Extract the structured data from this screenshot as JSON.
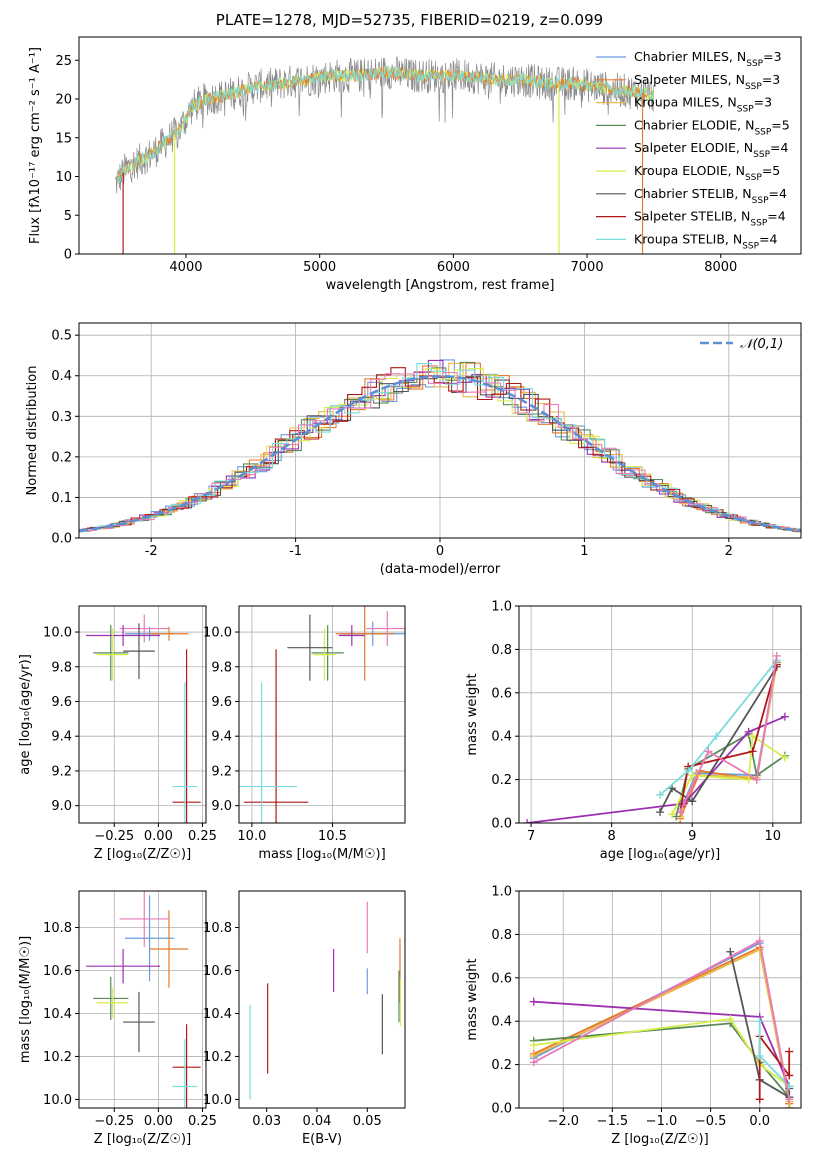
{
  "figure": {
    "title": "PLATE=1278, MJD=52735, FIBERID=0219, z=0.099"
  },
  "colors": {
    "Chabrier MILES": "#6a9bdf",
    "Salpeter MILES": "#e87a2a",
    "Kroupa MILES": "#e9b84a",
    "Chabrier ELODIE": "#5a8a5a",
    "Salpeter ELODIE": "#9b30b0",
    "Kroupa ELODIE": "#d6ee4a",
    "Chabrier STELIB": "#555555",
    "Salpeter STELIB": "#b01818",
    "Kroupa STELIB": "#7adcdc",
    "extra pink": "#e87ab8",
    "gauss": "#5b8fd6"
  },
  "chart_data": [
    {
      "id": "spectrum",
      "type": "line",
      "xlabel": "wavelength [Angstrom, rest frame]",
      "ylabel": "Flux [fλ10⁻¹⁷ erg cm⁻² s⁻¹ A⁻¹]",
      "xlim": [
        3200,
        8600
      ],
      "ylim": [
        0,
        28
      ],
      "xticks": [
        4000,
        5000,
        6000,
        7000,
        8000
      ],
      "yticks": [
        0,
        5,
        10,
        15,
        20,
        25
      ],
      "grid": false,
      "legend_position": "top-right",
      "spectrum_shape": {
        "x": [
          3470,
          3550,
          3650,
          3750,
          3850,
          3950,
          4050,
          4150,
          4300,
          4500,
          4700,
          4900,
          5100,
          5300,
          5500,
          5700,
          5900,
          6100,
          6300,
          6500,
          6700,
          6900,
          7100,
          7300,
          7500
        ],
        "y": [
          9,
          11,
          12,
          13,
          14.5,
          16,
          19,
          20,
          20.5,
          21.5,
          22,
          22.5,
          23,
          23,
          23.5,
          23,
          23,
          23,
          22.5,
          22.5,
          22,
          22,
          21.5,
          21,
          20.5
        ]
      },
      "models": [
        {
          "name": "Chabrier MILES",
          "nssp": "3"
        },
        {
          "name": "Salpeter MILES",
          "nssp": "3"
        },
        {
          "name": "Kroupa MILES",
          "nssp": "3"
        },
        {
          "name": "Chabrier ELODIE",
          "nssp": "5"
        },
        {
          "name": "Salpeter ELODIE",
          "nssp": "4"
        },
        {
          "name": "Kroupa ELODIE",
          "nssp": "5"
        },
        {
          "name": "Chabrier STELIB",
          "nssp": "4"
        },
        {
          "name": "Salpeter STELIB",
          "nssp": "4"
        },
        {
          "name": "Kroupa STELIB",
          "nssp": "4"
        }
      ]
    },
    {
      "id": "residuals",
      "type": "line",
      "xlabel": "(data-model)/error",
      "ylabel": "Normed distribution",
      "xlim": [
        -2.5,
        2.5
      ],
      "ylim": [
        0,
        0.53
      ],
      "xticks": [
        -2,
        -1,
        0,
        1,
        2
      ],
      "yticks": [
        0.0,
        0.1,
        0.2,
        0.3,
        0.4,
        0.5
      ],
      "grid": true,
      "legend": "𝒩(0,1)",
      "legend_position": "top-right",
      "bin_width": 0.1
    },
    {
      "id": "age-vs-z",
      "type": "scatter",
      "xlabel": "Z [log₁₀(Z/Z☉)]",
      "ylabel": "age [log₁₀(age/yr)]",
      "xlim": [
        -0.45,
        0.27
      ],
      "ylim": [
        8.9,
        10.15
      ],
      "xticks": [
        -0.25,
        0.0,
        0.25
      ],
      "xtick_labels": [
        "−0.25",
        "0.00",
        "0.25"
      ],
      "yticks": [
        9.0,
        9.2,
        9.4,
        9.6,
        9.8,
        10.0
      ],
      "grid": true,
      "points": [
        {
          "series": "Chabrier MILES",
          "x": -0.05,
          "xerr": 0.14,
          "y": 9.99,
          "yerr": 0.04
        },
        {
          "series": "Salpeter MILES",
          "x": 0.06,
          "xerr": 0.11,
          "y": 9.99,
          "yerr": 0.04
        },
        {
          "series": "extra pink",
          "x": -0.08,
          "xerr": 0.14,
          "y": 10.02,
          "yerr": 0.08
        },
        {
          "series": "Chabrier ELODIE",
          "x": -0.27,
          "xerr": 0.1,
          "y": 9.88,
          "yerr": 0.16
        },
        {
          "series": "Salpeter ELODIE",
          "x": -0.2,
          "xerr": 0.21,
          "y": 9.98,
          "yerr": 0.06
        },
        {
          "series": "Kroupa ELODIE",
          "x": -0.26,
          "xerr": 0.09,
          "y": 9.87,
          "yerr": 0.15
        },
        {
          "series": "Chabrier STELIB",
          "x": -0.11,
          "xerr": 0.09,
          "y": 9.89,
          "yerr": 0.16
        },
        {
          "series": "Salpeter STELIB",
          "x": 0.16,
          "xerr": 0.08,
          "y": 9.02,
          "yerr": 0.88
        },
        {
          "series": "Kroupa STELIB",
          "x": 0.15,
          "xerr": 0.07,
          "y": 9.11,
          "yerr": 0.6
        }
      ]
    },
    {
      "id": "age-vs-mass",
      "type": "scatter",
      "xlabel": "mass [log₁₀(M/M☉)]",
      "xlim": [
        9.92,
        10.95
      ],
      "ylim": [
        8.9,
        10.15
      ],
      "xticks": [
        10.0,
        10.5
      ],
      "yticks": [
        9.0,
        9.2,
        9.4,
        9.6,
        9.8,
        10.0
      ],
      "grid": true,
      "points": [
        {
          "series": "Chabrier MILES",
          "x": 10.75,
          "xerr": 0.2,
          "y": 9.99,
          "yerr": 0.07
        },
        {
          "series": "Salpeter MILES",
          "x": 10.7,
          "xerr": 0.18,
          "y": 9.99,
          "yerr": 0.27
        },
        {
          "series": "extra pink",
          "x": 10.84,
          "xerr": 0.13,
          "y": 10.02,
          "yerr": 0.1
        },
        {
          "series": "Chabrier ELODIE",
          "x": 10.47,
          "xerr": 0.1,
          "y": 9.88,
          "yerr": 0.16
        },
        {
          "series": "Salpeter ELODIE",
          "x": 10.62,
          "xerr": 0.08,
          "y": 9.98,
          "yerr": 0.06
        },
        {
          "series": "Kroupa ELODIE",
          "x": 10.45,
          "xerr": 0.07,
          "y": 9.87,
          "yerr": 0.15
        },
        {
          "series": "Chabrier STELIB",
          "x": 10.36,
          "xerr": 0.14,
          "y": 9.91,
          "yerr": 0.19
        },
        {
          "series": "Salpeter STELIB",
          "x": 10.15,
          "xerr": 0.2,
          "y": 9.02,
          "yerr": 0.88
        },
        {
          "series": "Kroupa STELIB",
          "x": 10.06,
          "xerr": 0.22,
          "y": 9.11,
          "yerr": 0.6
        }
      ]
    },
    {
      "id": "weight-vs-age",
      "type": "line",
      "xlabel": "age [log₁₀(age/yr)]",
      "ylabel": "mass weight",
      "xlim": [
        6.85,
        10.35
      ],
      "ylim": [
        0,
        1.0
      ],
      "xticks": [
        7,
        8,
        9,
        10
      ],
      "yticks": [
        0.0,
        0.2,
        0.4,
        0.6,
        0.8,
        1.0
      ],
      "grid": true,
      "series": [
        {
          "name": "Chabrier MILES",
          "x": [
            8.85,
            9.05,
            9.8,
            10.05
          ],
          "y": [
            0.05,
            0.23,
            0.22,
            0.74
          ]
        },
        {
          "name": "Salpeter MILES",
          "x": [
            8.85,
            9.1,
            9.8,
            10.05
          ],
          "y": [
            0.02,
            0.24,
            0.2,
            0.74
          ]
        },
        {
          "name": "Kroupa MILES",
          "x": [
            8.85,
            9.05,
            9.8,
            10.05
          ],
          "y": [
            0.03,
            0.22,
            0.21,
            0.73
          ]
        },
        {
          "name": "Chabrier ELODIE",
          "x": [
            8.8,
            8.95,
            9.7,
            9.8,
            10.15
          ],
          "y": [
            0.03,
            0.25,
            0.41,
            0.22,
            0.31
          ]
        },
        {
          "name": "Salpeter ELODIE",
          "x": [
            6.95,
            8.9,
            9.7,
            10.15
          ],
          "y": [
            0.0,
            0.09,
            0.42,
            0.49
          ]
        },
        {
          "name": "Kroupa ELODIE",
          "x": [
            8.75,
            9.0,
            9.7,
            9.75,
            10.15
          ],
          "y": [
            0.04,
            0.22,
            0.2,
            0.4,
            0.3
          ]
        },
        {
          "name": "Chabrier STELIB",
          "x": [
            8.6,
            8.75,
            9.0,
            10.05
          ],
          "y": [
            0.05,
            0.16,
            0.1,
            0.72
          ]
        },
        {
          "name": "Salpeter STELIB",
          "x": [
            8.85,
            8.95,
            9.75,
            10.05
          ],
          "y": [
            0.05,
            0.26,
            0.33,
            0.73
          ]
        },
        {
          "name": "Kroupa STELIB",
          "x": [
            8.6,
            8.95,
            9.3,
            10.05
          ],
          "y": [
            0.13,
            0.24,
            0.4,
            0.75
          ]
        },
        {
          "name": "extra pink",
          "x": [
            8.85,
            9.2,
            9.8,
            10.05
          ],
          "y": [
            0.05,
            0.33,
            0.2,
            0.77
          ]
        }
      ]
    },
    {
      "id": "mass-vs-z",
      "type": "scatter",
      "xlabel": "Z [log₁₀(Z/Z☉)]",
      "ylabel": "mass [log₁₀(M/M☉)]",
      "xlim": [
        -0.45,
        0.27
      ],
      "ylim": [
        9.96,
        10.97
      ],
      "xticks": [
        -0.25,
        0.0,
        0.25
      ],
      "xtick_labels": [
        "−0.25",
        "0.00",
        "0.25"
      ],
      "yticks": [
        10.0,
        10.2,
        10.4,
        10.6,
        10.8
      ],
      "grid": true,
      "points": [
        {
          "series": "Chabrier MILES",
          "x": -0.05,
          "xerr": 0.14,
          "y": 10.75,
          "yerr": 0.2
        },
        {
          "series": "Salpeter MILES",
          "x": 0.06,
          "xerr": 0.11,
          "y": 10.7,
          "yerr": 0.18
        },
        {
          "series": "extra pink",
          "x": -0.08,
          "xerr": 0.14,
          "y": 10.84,
          "yerr": 0.13
        },
        {
          "series": "Chabrier ELODIE",
          "x": -0.27,
          "xerr": 0.1,
          "y": 10.47,
          "yerr": 0.1
        },
        {
          "series": "Salpeter ELODIE",
          "x": -0.2,
          "xerr": 0.21,
          "y": 10.62,
          "yerr": 0.08
        },
        {
          "series": "Kroupa ELODIE",
          "x": -0.26,
          "xerr": 0.09,
          "y": 10.45,
          "yerr": 0.07
        },
        {
          "series": "Chabrier STELIB",
          "x": -0.11,
          "xerr": 0.09,
          "y": 10.36,
          "yerr": 0.14
        },
        {
          "series": "Salpeter STELIB",
          "x": 0.16,
          "xerr": 0.08,
          "y": 10.15,
          "yerr": 0.2
        },
        {
          "series": "Kroupa STELIB",
          "x": 0.15,
          "xerr": 0.07,
          "y": 10.06,
          "yerr": 0.22
        }
      ]
    },
    {
      "id": "mass-vs-ebv",
      "type": "scatter",
      "xlabel": "E(B-V)",
      "xlim": [
        0.0245,
        0.0575
      ],
      "ylim": [
        9.96,
        10.97
      ],
      "xticks": [
        0.03,
        0.04,
        0.05
      ],
      "yticks": [
        10.0,
        10.2,
        10.4,
        10.6,
        10.8
      ],
      "grid": false,
      "points": [
        {
          "series": "Chabrier MILES",
          "x": 0.05,
          "y": 10.55,
          "yerr": 0.06
        },
        {
          "series": "Salpeter MILES",
          "x": 0.0565,
          "y": 10.6,
          "yerr": 0.15
        },
        {
          "series": "extra pink",
          "x": 0.05,
          "y": 10.8,
          "yerr": 0.12
        },
        {
          "series": "Chabrier ELODIE",
          "x": 0.0563,
          "y": 10.48,
          "yerr": 0.12
        },
        {
          "series": "Salpeter ELODIE",
          "x": 0.0433,
          "y": 10.6,
          "yerr": 0.1
        },
        {
          "series": "Kroupa ELODIE",
          "x": 0.0566,
          "y": 10.45,
          "yerr": 0.11
        },
        {
          "series": "Chabrier STELIB",
          "x": 0.053,
          "y": 10.35,
          "yerr": 0.14
        },
        {
          "series": "Salpeter STELIB",
          "x": 0.0302,
          "y": 10.33,
          "yerr": 0.21
        },
        {
          "series": "Kroupa STELIB",
          "x": 0.0267,
          "y": 10.22,
          "yerr": 0.22
        }
      ]
    },
    {
      "id": "weight-vs-z",
      "type": "line",
      "xlabel": "Z [log₁₀(Z/Z☉)]",
      "ylabel": "mass weight",
      "xlim": [
        -2.45,
        0.42
      ],
      "ylim": [
        0,
        1.0
      ],
      "xticks": [
        -2.0,
        -1.5,
        -1.0,
        -0.5,
        0.0
      ],
      "xtick_labels": [
        "−2.0",
        "−1.5",
        "−1.0",
        "−0.5",
        "0.0"
      ],
      "yticks": [
        0.0,
        0.2,
        0.4,
        0.6,
        0.8,
        1.0
      ],
      "grid": true,
      "series": [
        {
          "name": "Chabrier MILES",
          "x": [
            -2.3,
            0.0,
            0.3,
            0.3
          ],
          "y": [
            0.23,
            0.76,
            0.02,
            0.0
          ]
        },
        {
          "name": "Salpeter MILES",
          "x": [
            -2.3,
            0.0,
            0.3,
            0.3
          ],
          "y": [
            0.25,
            0.74,
            0.02,
            0.0
          ]
        },
        {
          "name": "Kroupa MILES",
          "x": [
            -2.3,
            0.0,
            0.3,
            0.3
          ],
          "y": [
            0.24,
            0.73,
            0.03,
            0.0
          ]
        },
        {
          "name": "Chabrier ELODIE",
          "x": [
            -2.3,
            -0.3,
            0.0,
            0.3
          ],
          "y": [
            0.31,
            0.39,
            0.21,
            0.05
          ]
        },
        {
          "name": "Salpeter ELODIE",
          "x": [
            -2.3,
            0.0,
            0.3
          ],
          "y": [
            0.49,
            0.42,
            0.1
          ]
        },
        {
          "name": "Kroupa ELODIE",
          "x": [
            -2.3,
            -0.3,
            0.0,
            0.3
          ],
          "y": [
            0.29,
            0.41,
            0.2,
            0.1
          ]
        },
        {
          "name": "Chabrier STELIB",
          "x": [
            -0.3,
            0.0,
            0.3,
            0.3
          ],
          "y": [
            0.72,
            0.13,
            0.05,
            0.09
          ]
        },
        {
          "name": "Salpeter STELIB",
          "x": [
            0.0,
            0.0,
            0.3,
            0.3
          ],
          "y": [
            0.04,
            0.33,
            0.15,
            0.26
          ]
        },
        {
          "name": "Kroupa STELIB",
          "x": [
            0.0,
            0.0,
            0.3
          ],
          "y": [
            0.4,
            0.24,
            0.1
          ]
        },
        {
          "name": "extra pink",
          "x": [
            -2.3,
            0.0,
            0.3
          ],
          "y": [
            0.21,
            0.77,
            0.04
          ]
        }
      ]
    }
  ]
}
